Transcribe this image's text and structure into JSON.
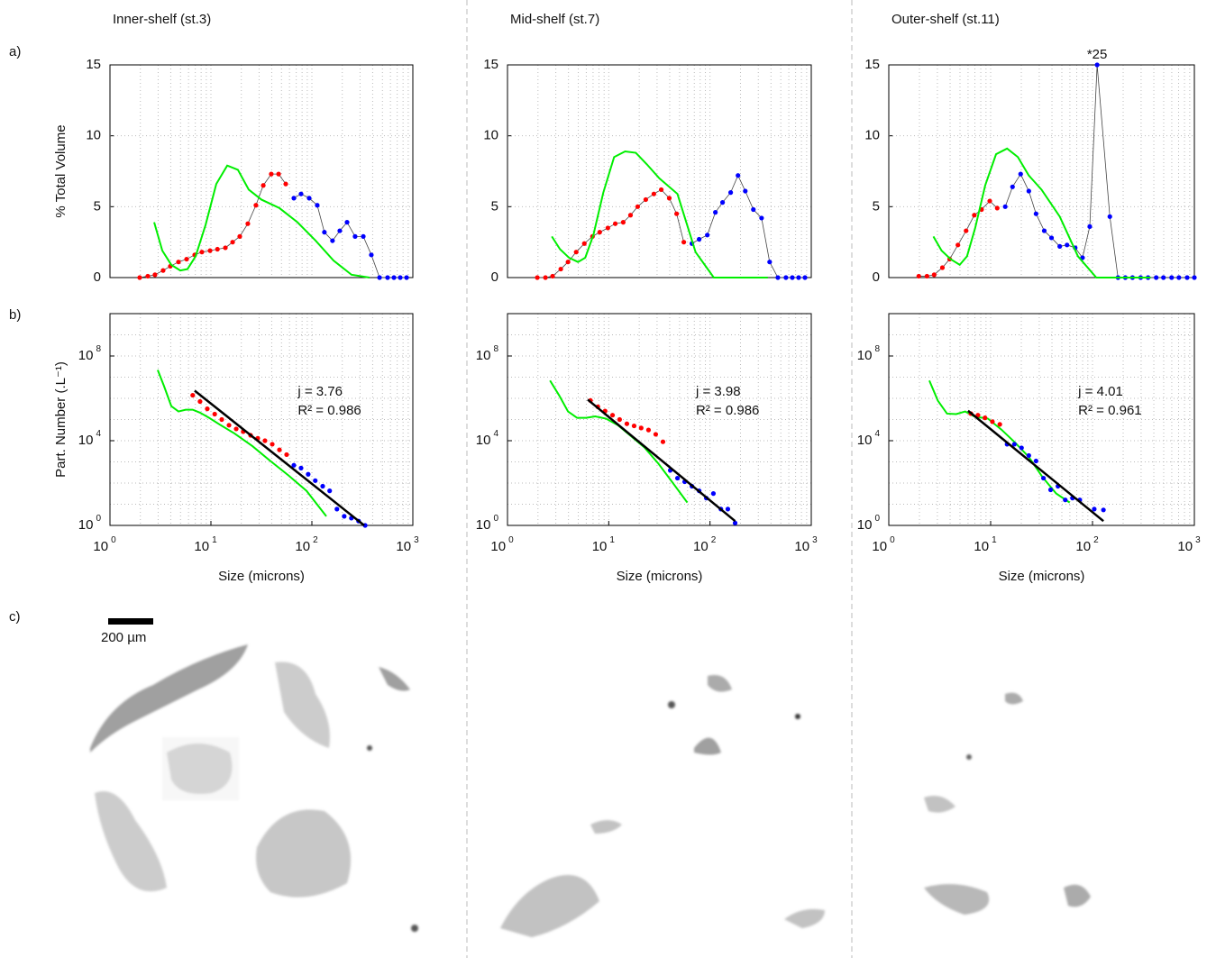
{
  "panel_labels": [
    "a)",
    "b)",
    "c)"
  ],
  "scale_bar": "200 µm",
  "chart_data": [
    {
      "type": "line",
      "title": "Inner-shelf (st.3)",
      "ylabel": "% Total Volume",
      "xlim": [
        1,
        1000
      ],
      "xlog": true,
      "ylim": [
        0,
        15
      ],
      "yticks": [
        0,
        5,
        10,
        15
      ],
      "grid": true,
      "series": [
        {
          "color": "#ff0000",
          "style": "dots-line",
          "x": [
            1.97,
            2.37,
            2.79,
            3.36,
            3.96,
            4.77,
            5.74,
            6.91,
            8.14,
            9.8,
            11.6,
            13.9,
            16.4,
            19.3,
            23.2,
            27.9,
            33,
            39.6,
            46.8,
            55.1
          ],
          "values": [
            0,
            0.1,
            0.2,
            0.5,
            0.8,
            1.1,
            1.3,
            1.6,
            1.8,
            1.9,
            2.0,
            2.1,
            2.5,
            2.9,
            3.8,
            5.1,
            6.5,
            7.3,
            7.3,
            6.6
          ]
        },
        {
          "color": "#0000ff",
          "style": "dots-line",
          "x": [
            66.3,
            78.1,
            94,
            113,
            133,
            160,
            189,
            223,
            268,
            323,
            388,
            468,
            562,
            650,
            750,
            867
          ],
          "values": [
            5.6,
            5.9,
            5.6,
            5.1,
            3.2,
            2.6,
            3.3,
            3.9,
            2.9,
            2.9,
            1.6,
            0,
            0,
            0,
            0,
            0
          ]
        },
        {
          "color": "#00ee00",
          "style": "line",
          "x": [
            2.74,
            3.3,
            4.05,
            4.97,
            5.86,
            7.05,
            8.84,
            11.3,
            14.5,
            18.5,
            23.7,
            31.6,
            47.7,
            72,
            109,
            164,
            247,
            372
          ],
          "values": [
            3.9,
            1.9,
            0.9,
            0.5,
            0.6,
            1.5,
            3.7,
            6.6,
            7.9,
            7.6,
            6.2,
            5.5,
            4.9,
            3.9,
            2.6,
            1.2,
            0.2,
            0
          ]
        }
      ]
    },
    {
      "type": "line",
      "title": "Mid-shelf (st.7)",
      "xlim": [
        1,
        1000
      ],
      "xlog": true,
      "ylim": [
        0,
        15
      ],
      "yticks": [
        0,
        5,
        10,
        15
      ],
      "grid": true,
      "series": [
        {
          "color": "#ff0000",
          "style": "dots-line",
          "x": [
            1.97,
            2.37,
            2.79,
            3.36,
            3.96,
            4.77,
            5.74,
            6.91,
            8.14,
            9.8,
            11.6,
            13.9,
            16.4,
            19.3,
            23.2,
            27.9,
            33,
            39.6,
            46.8,
            55.1
          ],
          "values": [
            0,
            0,
            0.1,
            0.6,
            1.1,
            1.8,
            2.4,
            2.9,
            3.2,
            3.5,
            3.8,
            3.9,
            4.4,
            5.0,
            5.5,
            5.9,
            6.2,
            5.6,
            4.5,
            2.5
          ]
        },
        {
          "color": "#0000ff",
          "style": "dots-line",
          "x": [
            66.3,
            78.1,
            94,
            113,
            133,
            160,
            189,
            223,
            268,
            323,
            388,
            468,
            562,
            650,
            750,
            867
          ],
          "values": [
            2.4,
            2.7,
            3.0,
            4.6,
            5.3,
            6.0,
            7.2,
            6.1,
            4.8,
            4.2,
            1.1,
            0,
            0,
            0,
            0,
            0
          ]
        },
        {
          "color": "#00ee00",
          "style": "line",
          "x": [
            2.74,
            3.3,
            4.05,
            4.97,
            5.86,
            7.05,
            8.84,
            11.3,
            14.5,
            18.5,
            23.7,
            31.6,
            47.7,
            72,
            109,
            164,
            247,
            372
          ],
          "values": [
            2.9,
            2.0,
            1.4,
            1.1,
            1.4,
            3.0,
            6.0,
            8.5,
            8.9,
            8.8,
            8.0,
            7.0,
            5.9,
            1.8,
            0,
            0,
            0,
            0
          ]
        }
      ]
    },
    {
      "type": "line",
      "title": "Outer-shelf (st.11)",
      "xlim": [
        1,
        1000
      ],
      "xlog": true,
      "ylim": [
        0,
        15
      ],
      "yticks": [
        0,
        5,
        10,
        15
      ],
      "grid": true,
      "annotations": [
        "*25"
      ],
      "series": [
        {
          "color": "#ff0000",
          "style": "dots-line",
          "x": [
            1.97,
            2.37,
            2.79,
            3.36,
            3.96,
            4.77,
            5.74,
            6.91,
            8.14,
            9.8,
            11.6
          ],
          "values": [
            0.1,
            0.1,
            0.2,
            0.7,
            1.3,
            2.3,
            3.3,
            4.4,
            4.8,
            5.4,
            4.9
          ]
        },
        {
          "color": "#0000ff",
          "style": "dots-line",
          "x": [
            13.9,
            16.4,
            19.7,
            23.7,
            27.9,
            33.6,
            39.6,
            47.7,
            56.2,
            67.6,
            79.8,
            94,
            111,
            148,
            178,
            210,
            247,
            297,
            351,
            422,
            497,
            598,
            705,
            849,
            1000
          ],
          "values": [
            5.0,
            6.4,
            7.3,
            6.1,
            4.5,
            3.3,
            2.8,
            2.2,
            2.3,
            2.1,
            1.4,
            3.6,
            15,
            4.3,
            0,
            0,
            0,
            0,
            0,
            0,
            0,
            0,
            0,
            0,
            0
          ]
        },
        {
          "color": "#00ee00",
          "style": "line",
          "x": [
            2.74,
            3.3,
            4.05,
            4.97,
            5.86,
            7.05,
            8.84,
            11.3,
            14.5,
            18.5,
            23.7,
            31.6,
            47.7,
            72,
            109,
            164,
            247,
            372
          ],
          "values": [
            2.9,
            1.9,
            1.3,
            0.9,
            1.5,
            3.5,
            6.5,
            8.7,
            9.1,
            8.5,
            7.2,
            6.2,
            4.3,
            1.5,
            0,
            0,
            0,
            0
          ]
        }
      ]
    },
    {
      "type": "line",
      "ylabel": "Part. Number (.L⁻¹)",
      "xlabel": "Size (microns)",
      "xlim": [
        1,
        1000
      ],
      "xlog": true,
      "ylim": [
        1,
        10000000000
      ],
      "ylog": true,
      "grid": true,
      "xticks": [
        {
          "value": 1,
          "label": "10^0"
        },
        {
          "value": 10,
          "label": "10^1"
        },
        {
          "value": 100,
          "label": "10^2"
        },
        {
          "value": 1000,
          "label": "10^3"
        }
      ],
      "yticks": [
        {
          "value": 1,
          "label": "10^0"
        },
        {
          "value": 10000,
          "label": "10^4"
        },
        {
          "value": 100000000,
          "label": "10^8"
        }
      ],
      "annotations": [
        "j = 3.76",
        "R² = 0.986"
      ],
      "series": [
        {
          "color": "#00ee00",
          "style": "line",
          "x": [
            2.97,
            3.43,
            4.05,
            4.77,
            5.62,
            6.6,
            7.8,
            9.6,
            12.5,
            17.1,
            25.8,
            38.8,
            58.6,
            88.4,
            139
          ],
          "values": [
            22000000.0,
            3800000.0,
            430000.0,
            240000.0,
            290000.0,
            290000.0,
            210000.0,
            120000.0,
            54000.0,
            22000.0,
            5500.0,
            1100.0,
            230,
            43,
            2.7
          ]
        },
        {
          "color": "#ff0000",
          "style": "dots",
          "x": [
            6.6,
            7.8,
            9.2,
            10.9,
            12.8,
            15.1,
            17.8,
            20.9,
            24.7,
            29.1,
            34.3,
            40.5,
            47.7,
            56.2
          ],
          "values": [
            1400000.0,
            710000.0,
            320000.0,
            180000.0,
            100000.0,
            54000.0,
            36000.0,
            27000.0,
            18000.0,
            13000.0,
            10000.0,
            6800.0,
            3700.0,
            2200.0
          ]
        },
        {
          "color": "#0000ff",
          "style": "dots",
          "x": [
            66.3,
            78.1,
            91.9,
            108,
            128,
            150,
            177,
            209,
            246,
            290,
            337
          ],
          "values": [
            690,
            510,
            260,
            130,
            71,
            43,
            5.9,
            2.7,
            2.2,
            1.6,
            1
          ]
        },
        {
          "color": "#000000",
          "style": "line",
          "width": 2.5,
          "x": [
            6.9,
            330
          ],
          "values": [
            2300000.0,
            1
          ]
        }
      ]
    },
    {
      "type": "line",
      "xlabel": "Size (microns)",
      "xlim": [
        1,
        1000
      ],
      "xlog": true,
      "ylim": [
        1,
        10000000000
      ],
      "ylog": true,
      "grid": true,
      "xticks": [
        {
          "value": 1,
          "label": "10^0"
        },
        {
          "value": 10,
          "label": "10^1"
        },
        {
          "value": 100,
          "label": "10^2"
        },
        {
          "value": 1000,
          "label": "10^3"
        }
      ],
      "yticks": [
        {
          "value": 1,
          "label": "10^0"
        },
        {
          "value": 10000,
          "label": "10^4"
        },
        {
          "value": 100000000,
          "label": "10^8"
        }
      ],
      "annotations": [
        "j = 3.98",
        "R² = 0.986"
      ],
      "series": [
        {
          "color": "#00ee00",
          "style": "line",
          "x": [
            2.63,
            3.23,
            3.96,
            4.87,
            5.98,
            7.35,
            9.4,
            12.3,
            16.7,
            22.7,
            30.9,
            42.1,
            59.7
          ],
          "values": [
            6900000.0,
            1400000.0,
            240000.0,
            120000.0,
            120000.0,
            140000.0,
            110000.0,
            54000.0,
            16000.0,
            4600.0,
            830,
            115,
            12
          ]
        },
        {
          "color": "#ff0000",
          "style": "dots",
          "x": [
            6.6,
            7.8,
            9.2,
            10.9,
            12.8,
            15.1,
            17.8,
            20.9,
            24.7,
            29.1,
            34.3
          ],
          "values": [
            790000.0,
            400000.0,
            250000.0,
            160000.0,
            100000.0,
            63000.0,
            50000.0,
            40000.0,
            32000.0,
            20000.0,
            8900.0
          ]
        },
        {
          "color": "#0000ff",
          "style": "dots",
          "x": [
            40.5,
            47.7,
            56.2,
            66.3,
            78.1,
            91.9,
            108,
            128,
            150,
            177
          ],
          "values": [
            400,
            170,
            115,
            71,
            43,
            19.5,
            32,
            5.9,
            5.9,
            1.3
          ]
        },
        {
          "color": "#000000",
          "style": "line",
          "width": 2.5,
          "x": [
            6.2,
            177
          ],
          "values": [
            870000.0,
            1.6
          ]
        }
      ]
    },
    {
      "type": "line",
      "xlabel": "Size (microns)",
      "xlim": [
        1,
        1000
      ],
      "xlog": true,
      "ylim": [
        1,
        10000000000
      ],
      "ylog": true,
      "grid": true,
      "xticks": [
        {
          "value": 1,
          "label": "10^0"
        },
        {
          "value": 10,
          "label": "10^1"
        },
        {
          "value": 100,
          "label": "10^2"
        },
        {
          "value": 1000,
          "label": "10^3"
        }
      ],
      "yticks": [
        {
          "value": 1,
          "label": "10^0"
        },
        {
          "value": 10000,
          "label": "10^4"
        },
        {
          "value": 100000000,
          "label": "10^8"
        }
      ],
      "annotations": [
        "j = 4.01",
        "R² = 0.961"
      ],
      "series": [
        {
          "color": "#00ee00",
          "style": "line",
          "x": [
            2.5,
            3.03,
            3.73,
            4.59,
            5.63,
            6.9,
            9.4,
            12.8,
            17.4,
            23.7,
            32.3,
            44,
            59.7
          ],
          "values": [
            6900000.0,
            780000.0,
            190000.0,
            180000.0,
            240000.0,
            140000.0,
            110000.0,
            33000.0,
            8100.0,
            1700.0,
            190,
            32,
            12
          ]
        },
        {
          "color": "#ff0000",
          "style": "dots",
          "x": [
            6.4,
            7.5,
            8.8,
            10.4,
            12.3
          ],
          "values": [
            190000.0,
            160000.0,
            120000.0,
            79000.0,
            59000.0
          ]
        },
        {
          "color": "#0000ff",
          "style": "dots",
          "x": [
            14.5,
            17.1,
            20.1,
            23.7,
            27.9,
            33,
            38.8,
            45.8,
            54,
            63.6,
            75,
            104,
            128
          ],
          "values": [
            6800.0,
            6800.0,
            4600.0,
            2000.0,
            1100.0,
            170,
            48,
            71,
            16,
            19.5,
            16,
            5.9,
            5.4
          ]
        },
        {
          "color": "#000000",
          "style": "line",
          "width": 2.5,
          "x": [
            6,
            128
          ],
          "values": [
            260000.0,
            1.6
          ]
        }
      ]
    }
  ]
}
